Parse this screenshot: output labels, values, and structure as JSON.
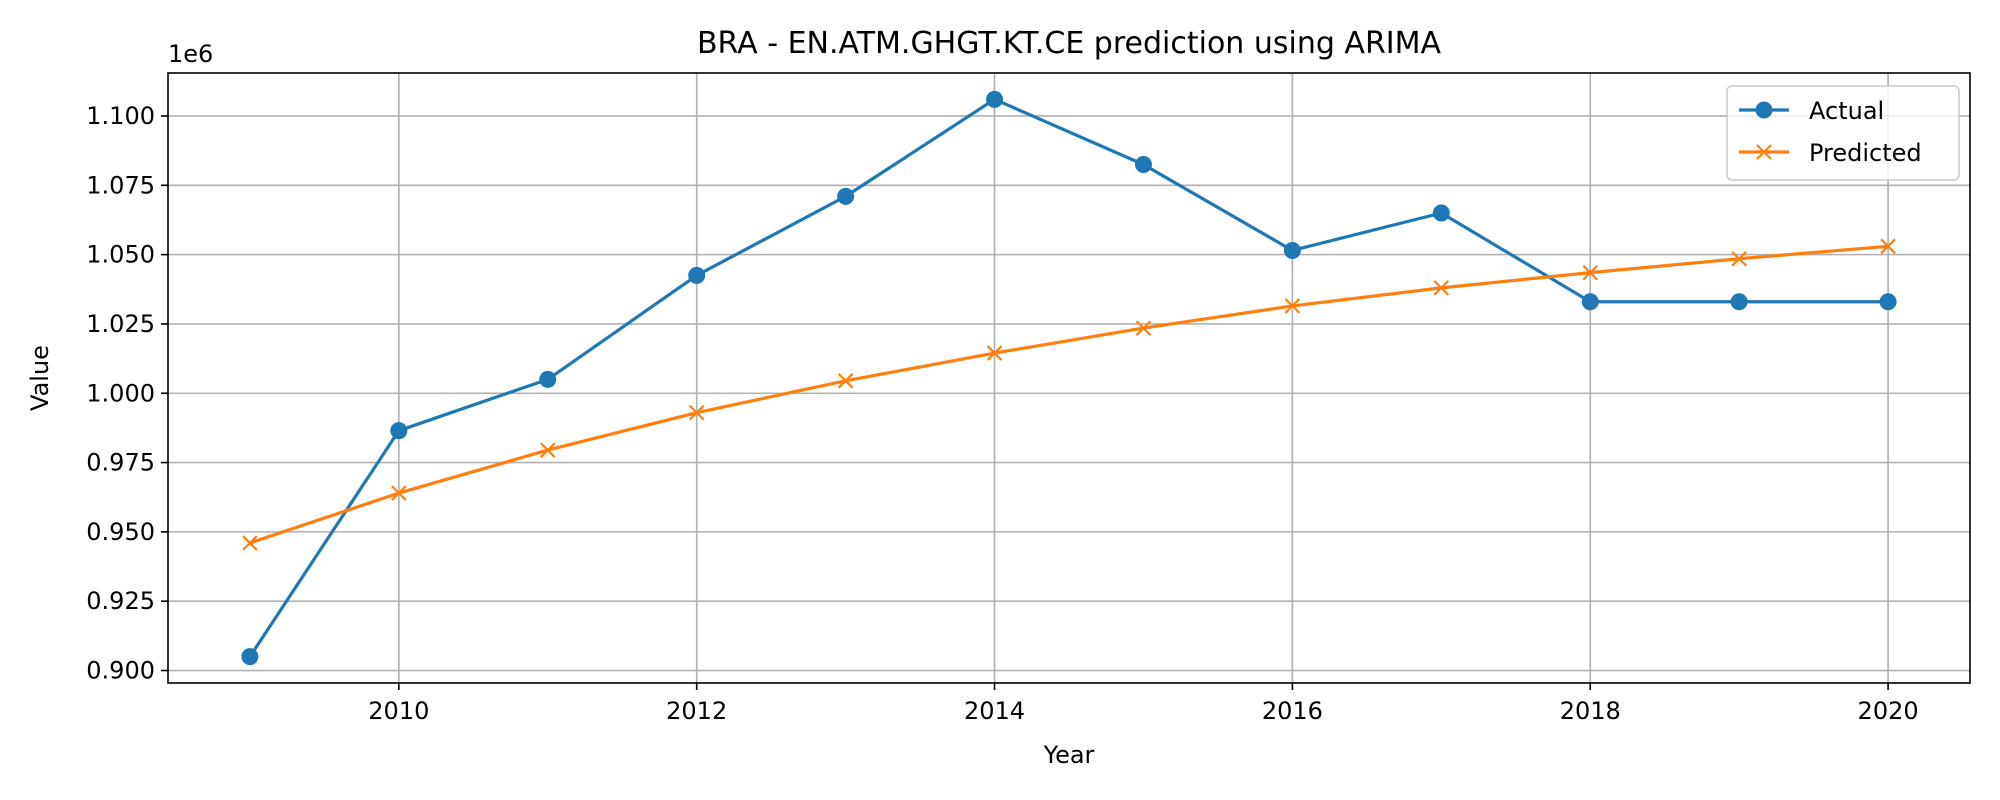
{
  "chart_data": {
    "type": "line",
    "title": "BRA - EN.ATM.GHGT.KT.CE prediction using ARIMA",
    "xlabel": "Year",
    "ylabel": "Value",
    "y_offset_label": "1e6",
    "xlim": [
      2008.45,
      2020.55
    ],
    "ylim": [
      0.8955,
      1.1155
    ],
    "x_ticks": [
      2010,
      2012,
      2014,
      2016,
      2018,
      2020
    ],
    "x_tick_labels": [
      "2010",
      "2012",
      "2014",
      "2016",
      "2018",
      "2020"
    ],
    "y_ticks": [
      0.9,
      0.925,
      0.95,
      0.975,
      1.0,
      1.025,
      1.05,
      1.075,
      1.1
    ],
    "y_tick_labels": [
      "0.900",
      "0.925",
      "0.950",
      "0.975",
      "1.000",
      "1.025",
      "1.050",
      "1.075",
      "1.100"
    ],
    "grid": true,
    "legend_position": "top-right",
    "x": [
      2009,
      2010,
      2011,
      2012,
      2013,
      2014,
      2015,
      2016,
      2017,
      2018,
      2019,
      2020
    ],
    "series": [
      {
        "name": "Actual",
        "color": "#1f77b4",
        "marker": "circle",
        "values": [
          0.905,
          0.9865,
          1.005,
          1.0425,
          1.071,
          1.106,
          1.0825,
          1.0515,
          1.065,
          1.033,
          1.033,
          1.033
        ]
      },
      {
        "name": "Predicted",
        "color": "#ff7f0e",
        "marker": "x",
        "values": [
          0.946,
          0.964,
          0.9795,
          0.993,
          1.0045,
          1.0145,
          1.0235,
          1.0315,
          1.038,
          1.0435,
          1.0485,
          1.053
        ]
      }
    ]
  }
}
